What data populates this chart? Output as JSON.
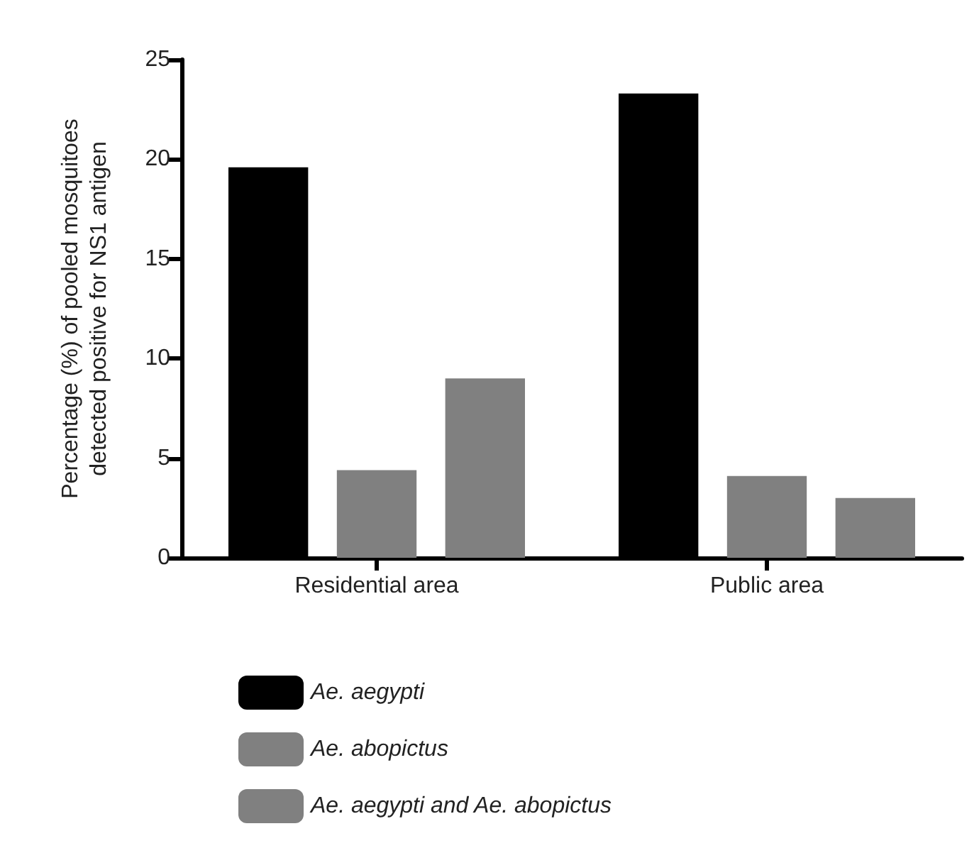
{
  "chart_data": {
    "type": "bar",
    "ylabel": "Percentage (%) of pooled mosquitoes\ndetected positive for NS1 antigen",
    "categories": [
      "Residential area",
      "Public area"
    ],
    "series": [
      {
        "name": "Ae. aegypti",
        "color": "#000000",
        "values": [
          19.6,
          23.3
        ]
      },
      {
        "name": "Ae. abopictus",
        "color": "#808080",
        "values": [
          4.4,
          4.1
        ]
      },
      {
        "name": "Ae. aegypti and Ae. abopictus",
        "color": "#808080",
        "values": [
          9.0,
          3.0
        ]
      }
    ],
    "ylim": [
      0,
      25
    ],
    "yticks": [
      0,
      5,
      10,
      15,
      20,
      25
    ],
    "grid": false,
    "legend": "bottom left"
  }
}
